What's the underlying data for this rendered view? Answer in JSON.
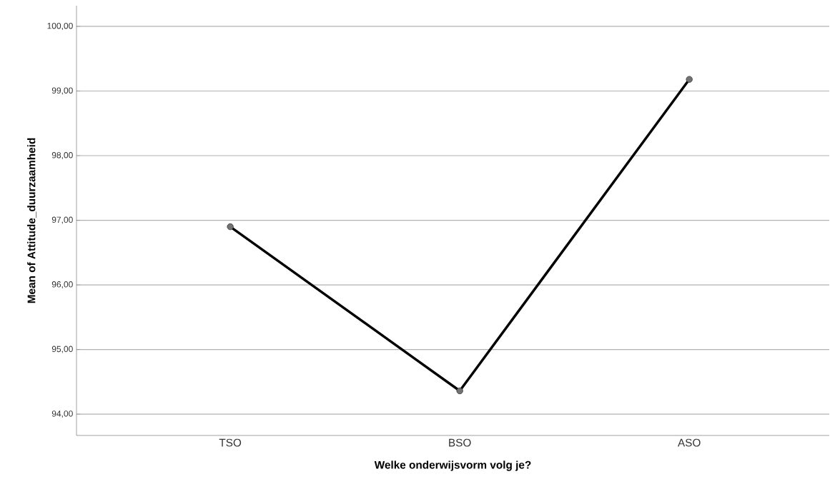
{
  "chart_data": {
    "type": "line",
    "xlabel": "Welke onderwijsvorm volg je?",
    "ylabel": "Mean of Attitude_duurzaamheid",
    "categories": [
      "TSO",
      "BSO",
      "ASO"
    ],
    "series": [
      {
        "color": "#000000",
        "values": [
          96.9,
          94.36,
          99.18
        ]
      }
    ],
    "ylim": [
      93.67,
      100.32
    ],
    "yticks": [
      {
        "value": 94,
        "label": "94,00"
      },
      {
        "value": 95,
        "label": "95,00"
      },
      {
        "value": 96,
        "label": "96,00"
      },
      {
        "value": 97,
        "label": "97,00"
      },
      {
        "value": 98,
        "label": "98,00"
      },
      {
        "value": 99,
        "label": "99,00"
      },
      {
        "value": 100,
        "label": "100,00"
      }
    ],
    "grid": "y",
    "marker": "circle",
    "line_style": "solid"
  }
}
